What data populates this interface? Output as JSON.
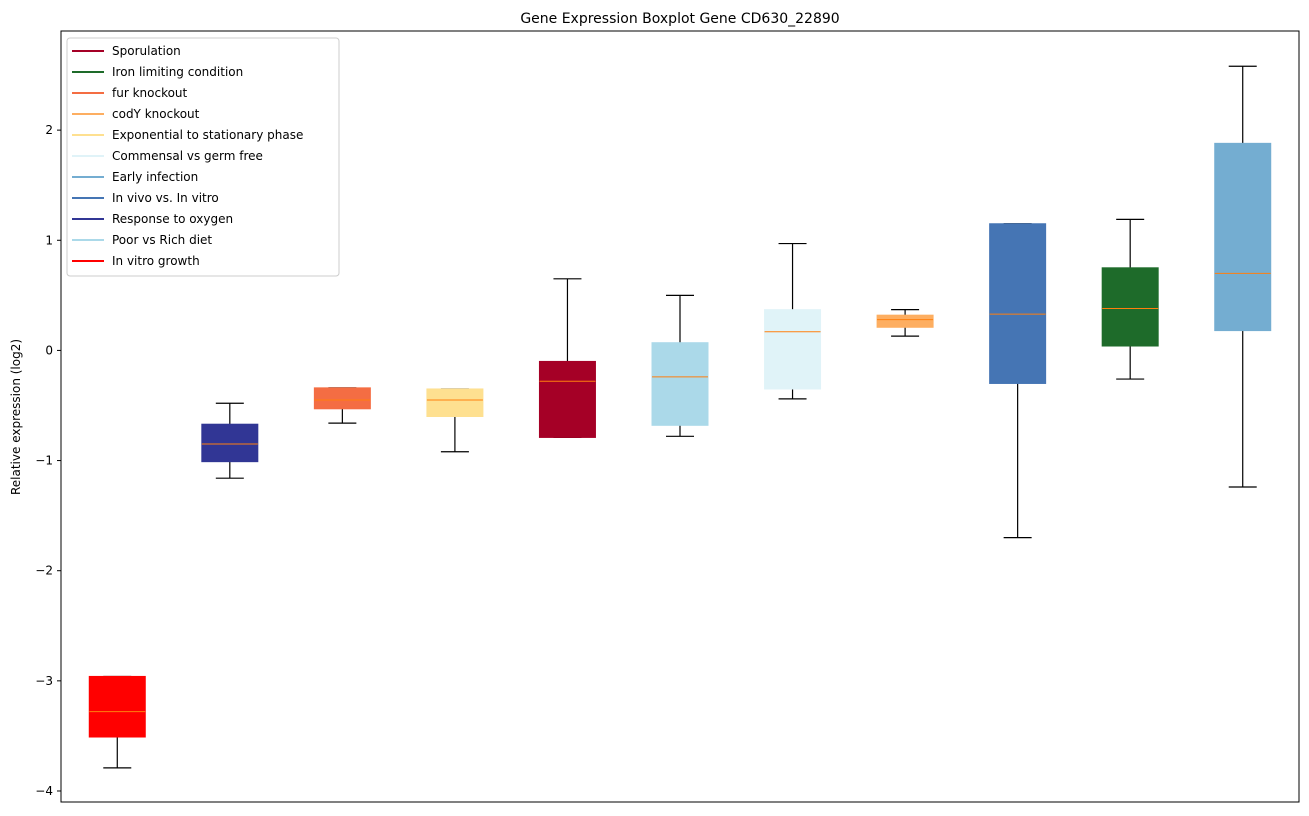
{
  "chart_data": {
    "type": "boxplot",
    "title": "Gene Expression Boxplot Gene CD630_22890",
    "xlabel": "",
    "ylabel": "Relative expression (log2)",
    "ylim": [
      -4.1,
      2.9
    ],
    "yticks": [
      -4,
      -3,
      -2,
      -1,
      0,
      1,
      2
    ],
    "ytick_labels": [
      "−4",
      "−3",
      "−2",
      "−1",
      "0",
      "1",
      "2"
    ],
    "median_color": "#ff7f0e",
    "whisker_color": "#000000",
    "legend": {
      "position": "upper-left",
      "entries": [
        {
          "label": "Sporulation",
          "color": "#a50026"
        },
        {
          "label": "Iron limiting condition",
          "color": "#1e6b2a"
        },
        {
          "label": "fur knockout",
          "color": "#f46d43"
        },
        {
          "label": "codY knockout",
          "color": "#fdae61"
        },
        {
          "label": "Exponential to stationary phase",
          "color": "#fee090"
        },
        {
          "label": "Commensal vs germ free",
          "color": "#e0f3f8"
        },
        {
          "label": "Early infection",
          "color": "#74add1"
        },
        {
          "label": "In vivo vs. In vitro",
          "color": "#4575b4"
        },
        {
          "label": "Response to oxygen",
          "color": "#313695"
        },
        {
          "label": "Poor vs Rich diet",
          "color": "#abd9e9"
        },
        {
          "label": "In vitro growth",
          "color": "#ff0000"
        }
      ]
    },
    "boxes": [
      {
        "series": "In vitro growth",
        "color": "#ff0000",
        "whislo": -3.79,
        "q1": -3.51,
        "med": -3.28,
        "q3": -2.96,
        "whishi": -2.96
      },
      {
        "series": "Response to oxygen",
        "color": "#313695",
        "whislo": -1.16,
        "q1": -1.01,
        "med": -0.85,
        "q3": -0.67,
        "whishi": -0.48
      },
      {
        "series": "fur knockout",
        "color": "#f46d43",
        "whislo": -0.66,
        "q1": -0.53,
        "med": -0.45,
        "q3": -0.34,
        "whishi": -0.34
      },
      {
        "series": "Exponential to stationary phase",
        "color": "#fee090",
        "whislo": -0.92,
        "q1": -0.6,
        "med": -0.45,
        "q3": -0.35,
        "whishi": -0.35
      },
      {
        "series": "Sporulation",
        "color": "#a50026",
        "whislo": -0.79,
        "q1": -0.79,
        "med": -0.28,
        "q3": -0.1,
        "whishi": 0.65
      },
      {
        "series": "Poor vs Rich diet",
        "color": "#abd9e9",
        "whislo": -0.78,
        "q1": -0.68,
        "med": -0.24,
        "q3": 0.07,
        "whishi": 0.5
      },
      {
        "series": "Commensal vs germ free",
        "color": "#e0f3f8",
        "whislo": -0.44,
        "q1": -0.35,
        "med": 0.17,
        "q3": 0.37,
        "whishi": 0.97
      },
      {
        "series": "codY knockout",
        "color": "#fdae61",
        "whislo": 0.13,
        "q1": 0.21,
        "med": 0.28,
        "q3": 0.32,
        "whishi": 0.37
      },
      {
        "series": "In vivo vs. In vitro",
        "color": "#4575b4",
        "whislo": -1.7,
        "q1": -0.3,
        "med": 0.33,
        "q3": 1.15,
        "whishi": 1.15
      },
      {
        "series": "Iron limiting condition",
        "color": "#1e6b2a",
        "whislo": -0.26,
        "q1": 0.04,
        "med": 0.38,
        "q3": 0.75,
        "whishi": 1.19
      },
      {
        "series": "Early infection",
        "color": "#74add1",
        "whislo": -1.24,
        "q1": 0.18,
        "med": 0.7,
        "q3": 1.88,
        "whishi": 2.58
      }
    ]
  }
}
